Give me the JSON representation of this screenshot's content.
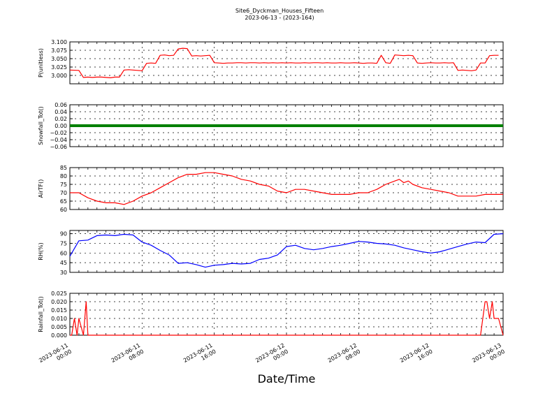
{
  "figure": {
    "title": "Site6_Dyckman_Houses_Fifteen",
    "subtitle": "2023-06-13 - (2023-164)",
    "xlabel": "Date/Time"
  },
  "chart_data": [
    {
      "type": "line",
      "ylabel": "P(unitless)",
      "ylim": [
        2.975,
        3.1
      ],
      "yticks": [
        "3.000",
        "3.025",
        "3.050",
        "3.075",
        "3.100"
      ],
      "ytick_values": [
        3.0,
        3.025,
        3.05,
        3.075,
        3.1
      ],
      "x_hours": [
        0,
        1,
        1.5,
        2,
        2.5,
        3,
        3.5,
        4,
        4.5,
        5,
        5.5,
        6,
        6.5,
        7,
        7.5,
        8,
        8.5,
        9,
        9.5,
        10,
        10.5,
        11,
        11.5,
        12,
        12.5,
        13,
        13.5,
        14,
        14.5,
        15,
        15.5,
        16,
        16.5,
        17,
        17.5,
        18,
        18.5,
        19,
        19.5,
        20,
        20.5,
        21,
        21.5,
        22,
        22.5,
        23,
        23.5,
        24,
        24.5,
        25,
        25.5,
        26,
        26.5,
        27,
        27.5,
        28,
        28.5,
        29,
        29.5,
        30,
        30.5,
        31,
        31.5,
        32,
        32.5,
        33,
        33.5,
        34,
        34.5,
        35,
        35.5,
        36,
        36.5,
        37,
        37.5,
        38,
        38.5,
        39,
        39.5,
        40,
        40.5,
        41,
        41.5,
        42,
        42.5,
        43,
        43.5,
        44,
        44.5,
        45,
        45.5,
        46,
        46.5,
        47,
        47.5,
        48
      ],
      "series": [
        {
          "color": "#ff0000",
          "values": [
            3.016,
            3.015,
            2.994,
            2.995,
            2.994,
            2.995,
            2.995,
            2.994,
            2.993,
            2.995,
            2.995,
            3.016,
            3.017,
            3.016,
            3.015,
            3.014,
            3.036,
            3.037,
            3.036,
            3.06,
            3.061,
            3.059,
            3.06,
            3.079,
            3.081,
            3.08,
            3.058,
            3.059,
            3.058,
            3.059,
            3.06,
            3.038,
            3.037,
            3.036,
            3.037,
            3.037,
            3.038,
            3.038,
            3.037,
            3.038,
            3.038,
            3.037,
            3.038,
            3.037,
            3.038,
            3.037,
            3.038,
            3.037,
            3.038,
            3.037,
            3.037,
            3.038,
            3.037,
            3.038,
            3.038,
            3.037,
            3.038,
            3.037,
            3.037,
            3.038,
            3.037,
            3.037,
            3.038,
            3.037,
            3.036,
            3.037,
            3.037,
            3.036,
            3.06,
            3.038,
            3.036,
            3.061,
            3.06,
            3.059,
            3.06,
            3.059,
            3.037,
            3.036,
            3.037,
            3.038,
            3.037,
            3.037,
            3.038,
            3.037,
            3.038,
            3.015,
            3.016,
            3.015,
            3.014,
            3.016,
            3.037,
            3.037,
            3.059,
            3.06,
            3.06
          ]
        }
      ]
    },
    {
      "type": "line",
      "ylabel": "Snowfall_Tot()",
      "ylim": [
        -0.06,
        0.06
      ],
      "yticks": [
        "−0.06",
        "−0.04",
        "−0.02",
        "0.00",
        "0.02",
        "0.04",
        "0.06"
      ],
      "ytick_values": [
        -0.06,
        -0.04,
        -0.02,
        0,
        0.02,
        0.04,
        0.06
      ],
      "x_hours": [
        0,
        48
      ],
      "series": [
        {
          "color": "#008000",
          "values": [
            0,
            0
          ]
        }
      ]
    },
    {
      "type": "line",
      "ylabel": "AirTF()",
      "ylim": [
        60,
        85
      ],
      "yticks": [
        "60",
        "65",
        "70",
        "75",
        "80",
        "85"
      ],
      "ytick_values": [
        60,
        65,
        70,
        75,
        80,
        85
      ],
      "x_hours": [
        0,
        1,
        2,
        3,
        4,
        5,
        6,
        7,
        8,
        9,
        10,
        11,
        12,
        13,
        14,
        15,
        16,
        17,
        18,
        19,
        20,
        21,
        22,
        23,
        24,
        25,
        26,
        27,
        28,
        29,
        30,
        31,
        32,
        33,
        34,
        35,
        36,
        36.5,
        37,
        37.5,
        38,
        39,
        40,
        41,
        42,
        43,
        44,
        45,
        46,
        47,
        48
      ],
      "series": [
        {
          "color": "#ff0000",
          "values": [
            70,
            70,
            67,
            65,
            64,
            64,
            63,
            65,
            68,
            70,
            73,
            76,
            79,
            81,
            81,
            82,
            82,
            81,
            80,
            78,
            77,
            75,
            74,
            71,
            70,
            72,
            72,
            71,
            70,
            69,
            69,
            69,
            70,
            70,
            72,
            75,
            77,
            78,
            76,
            77,
            75,
            73,
            72,
            71,
            70,
            68,
            68,
            68,
            69,
            69,
            69
          ]
        }
      ]
    },
    {
      "type": "line",
      "ylabel": "RH(%)",
      "ylim": [
        30,
        95
      ],
      "yticks": [
        "30",
        "45",
        "60",
        "75",
        "90"
      ],
      "ytick_values": [
        30,
        45,
        60,
        75,
        90
      ],
      "x_hours": [
        0,
        1,
        2,
        3,
        4,
        5,
        6,
        7,
        8,
        9,
        10,
        11,
        12,
        13,
        14,
        15,
        16,
        17,
        18,
        19,
        20,
        21,
        22,
        23,
        24,
        25,
        26,
        27,
        28,
        29,
        30,
        31,
        32,
        33,
        34,
        35,
        36,
        37,
        38,
        39,
        40,
        41,
        42,
        43,
        44,
        45,
        46,
        47,
        48
      ],
      "series": [
        {
          "color": "#0000ff",
          "values": [
            55,
            79,
            80,
            87,
            88,
            87,
            89,
            88,
            77,
            72,
            64,
            57,
            44,
            45,
            42,
            38,
            41,
            42,
            44,
            43,
            44,
            50,
            52,
            57,
            70,
            72,
            67,
            65,
            67,
            70,
            72,
            75,
            78,
            77,
            75,
            74,
            72,
            68,
            65,
            62,
            60,
            62,
            66,
            70,
            74,
            77,
            76,
            89,
            90
          ]
        }
      ]
    },
    {
      "type": "line",
      "ylabel": "Rainfall_Tot()",
      "ylim": [
        0,
        0.025
      ],
      "yticks": [
        "0.000",
        "0.005",
        "0.010",
        "0.015",
        "0.020",
        "0.025"
      ],
      "ytick_values": [
        0,
        0.005,
        0.01,
        0.015,
        0.02,
        0.025
      ],
      "x_hours": [
        0,
        0.2,
        0.5,
        0.8,
        1.0,
        1.5,
        1.8,
        2.0,
        2.2,
        45.5,
        46.0,
        46.2,
        46.5,
        46.8,
        47.0,
        47.3,
        47.5,
        48.0
      ],
      "series": [
        {
          "color": "#ff0000",
          "values": [
            0,
            0,
            0.01,
            0,
            0.01,
            0,
            0.02,
            0,
            0,
            0,
            0.02,
            0.02,
            0.01,
            0.02,
            0.01,
            0.01,
            0.01,
            0
          ]
        }
      ]
    }
  ],
  "x_axis": {
    "range_hours": [
      0,
      48
    ],
    "ticks": [
      {
        "hour": 0,
        "line1": "2023-06-11",
        "line2": "00:00"
      },
      {
        "hour": 8,
        "line1": "2023-06-11",
        "line2": "08:00"
      },
      {
        "hour": 16,
        "line1": "2023-06-11",
        "line2": "16:00"
      },
      {
        "hour": 24,
        "line1": "2023-06-12",
        "line2": "00:00"
      },
      {
        "hour": 32,
        "line1": "2023-06-12",
        "line2": "08:00"
      },
      {
        "hour": 40,
        "line1": "2023-06-12",
        "line2": "16:00"
      },
      {
        "hour": 48,
        "line1": "2023-06-13",
        "line2": "00:00"
      }
    ]
  }
}
